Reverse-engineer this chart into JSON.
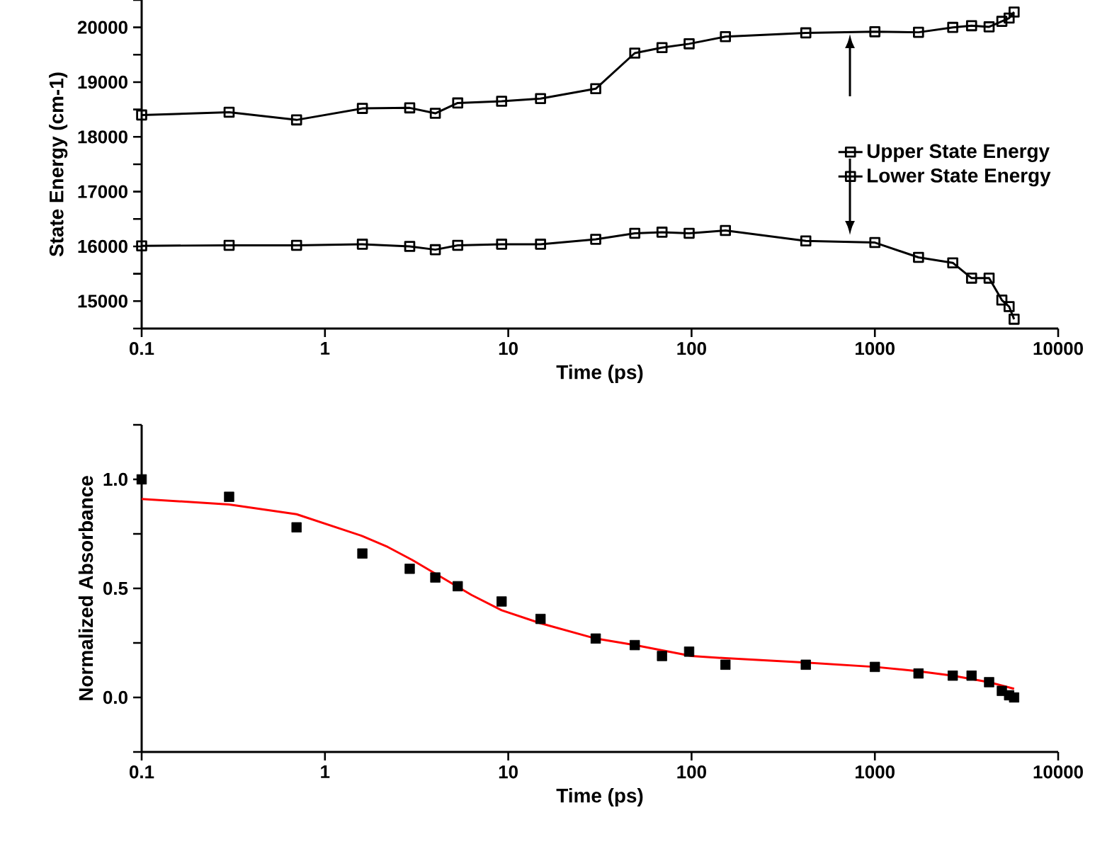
{
  "chart_data": [
    {
      "type": "line",
      "xlabel": "Time (ps)",
      "ylabel": "State Energy (cm-1)",
      "log": "x",
      "legend": "right",
      "x": [
        0.1,
        0.3,
        0.7,
        1.6,
        2.9,
        4,
        5.3,
        9.2,
        15,
        30,
        49,
        69,
        97,
        153,
        420,
        1000,
        1730,
        2660,
        3370,
        4200,
        4930,
        5400,
        5750
      ],
      "xlim": [
        0.1,
        10000
      ],
      "xticks": [
        0.1,
        1,
        10,
        100,
        1000,
        10000
      ],
      "ylim": [
        14500,
        20500
      ],
      "yticks": [
        {
          "value": 14500,
          "label": null
        },
        15000,
        {
          "value": 15500,
          "label": null
        },
        16000,
        {
          "value": 16500,
          "label": null
        },
        17000,
        {
          "value": 17500,
          "label": null
        },
        18000,
        {
          "value": 18500,
          "label": null
        },
        19000,
        {
          "value": 19500,
          "label": null
        },
        20000,
        {
          "value": 20500,
          "label": null
        }
      ],
      "series": [
        {
          "name": "Upper State Energy",
          "color": "#000000",
          "marker": "square",
          "values": [
            18400,
            18450,
            18310,
            18520,
            18530,
            18430,
            18620,
            18650,
            18700,
            18880,
            19530,
            19630,
            19700,
            19830,
            19900,
            19920,
            19910,
            20000,
            20030,
            20010,
            20110,
            20170,
            20280
          ]
        },
        {
          "name": "Lower State Energy",
          "color": "#000000",
          "marker": "square",
          "values": [
            16010,
            16020,
            16020,
            16040,
            16000,
            15940,
            16020,
            16040,
            16040,
            16130,
            16240,
            16260,
            16240,
            16290,
            16100,
            16070,
            15800,
            15700,
            15420,
            15420,
            15020,
            14900,
            14670
          ]
        }
      ]
    },
    {
      "type": "scatter",
      "xlabel": "Time (ps)",
      "ylabel": "Normalized Absorbance",
      "log": "x",
      "x": [
        0.1,
        0.3,
        0.7,
        1.6,
        2.9,
        4,
        5.3,
        9.2,
        15,
        30,
        49,
        69,
        97,
        153,
        420,
        1000,
        1730,
        2660,
        3370,
        4200,
        4930,
        5400,
        5750
      ],
      "xlim": [
        0.1,
        10000
      ],
      "xticks": [
        0.1,
        1,
        10,
        100,
        1000,
        10000
      ],
      "ylim": [
        -0.25,
        1.25
      ],
      "yticks": [
        {
          "value": -0.25,
          "label": null
        },
        {
          "value": 0,
          "label": "0.0"
        },
        {
          "value": 0.25,
          "label": null
        },
        {
          "value": 0.5,
          "label": "0.5"
        },
        {
          "value": 0.75,
          "label": null
        },
        {
          "value": 1,
          "label": "1.0"
        },
        {
          "value": 1.25,
          "label": null
        }
      ],
      "series": [
        {
          "type": "line",
          "color": "#ff0000",
          "marker": "none",
          "x": [
            0.1,
            0.3,
            0.7,
            1.6,
            2.2,
            3,
            6.3,
            9.2,
            15,
            30,
            49,
            100,
            153,
            420,
            1000,
            1730,
            2660,
            4200,
            5750
          ],
          "values": [
            0.91,
            0.885,
            0.84,
            0.74,
            0.69,
            0.63,
            0.47,
            0.4,
            0.34,
            0.27,
            0.24,
            0.19,
            0.18,
            0.16,
            0.14,
            0.12,
            0.1,
            0.07,
            0.04
          ]
        },
        {
          "color": "#000000",
          "marker": "square",
          "values": [
            1.0,
            0.92,
            0.78,
            0.66,
            0.59,
            0.55,
            0.51,
            0.44,
            0.36,
            0.27,
            0.24,
            0.19,
            0.21,
            0.15,
            0.15,
            0.14,
            0.11,
            0.1,
            0.1,
            0.07,
            0.03,
            0.01,
            0.0
          ]
        }
      ]
    }
  ]
}
